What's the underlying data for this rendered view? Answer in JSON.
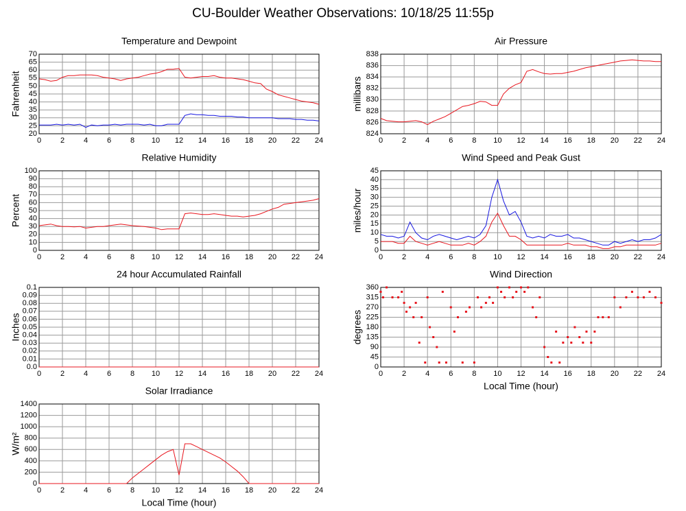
{
  "title": "CU-Boulder Weather Observations: 10/18/25 11:55p",
  "chart_data": [
    {
      "type": "line",
      "title": "Temperature and Dewpoint",
      "ylabel": "Fahrenheit",
      "x": [
        0,
        0.5,
        1,
        1.5,
        2,
        2.5,
        3,
        3.5,
        4,
        4.5,
        5,
        5.5,
        6,
        6.5,
        7,
        7.5,
        8,
        8.5,
        9,
        9.5,
        10,
        10.5,
        11,
        11.5,
        12,
        12.5,
        13,
        13.5,
        14,
        14.5,
        15,
        15.5,
        16,
        16.5,
        17,
        17.5,
        18,
        18.5,
        19,
        19.5,
        20,
        20.5,
        21,
        21.5,
        22,
        22.5,
        23,
        23.5,
        24
      ],
      "series": [
        {
          "color": "#e8141c",
          "values": [
            54.5,
            54,
            53,
            53.5,
            55.5,
            56.5,
            56.5,
            57,
            57,
            57,
            56.5,
            55.5,
            55,
            54.5,
            53.5,
            54.5,
            55,
            55.5,
            56.5,
            57.5,
            58,
            59,
            60.5,
            60.5,
            61,
            55.5,
            55,
            55.5,
            56,
            56,
            56.5,
            55.5,
            55,
            55,
            54.5,
            54,
            53,
            52,
            51.5,
            48,
            46.5,
            44.5,
            43.5,
            42.5,
            41.5,
            40.5,
            40,
            39.5,
            38.5
          ]
        },
        {
          "color": "#1414e0",
          "values": [
            25.5,
            25.5,
            25.5,
            26,
            25.5,
            26,
            25.5,
            26,
            24,
            25.5,
            25,
            25.5,
            25.5,
            26,
            25.5,
            26,
            26,
            26,
            25.5,
            26,
            25,
            25,
            26,
            26,
            26,
            31.5,
            32.5,
            32,
            32,
            31.5,
            31.5,
            31,
            31,
            31,
            30.5,
            30.5,
            30,
            30,
            30,
            30,
            30,
            29.5,
            29.5,
            29.5,
            29,
            29,
            28.5,
            28.5,
            28
          ]
        }
      ],
      "xlim": [
        0,
        24
      ],
      "xticks": [
        0,
        2,
        4,
        6,
        8,
        10,
        12,
        14,
        16,
        18,
        20,
        22,
        24
      ],
      "ylim": [
        20,
        70
      ],
      "yticks": [
        20,
        25,
        30,
        35,
        40,
        45,
        50,
        55,
        60,
        65,
        70
      ],
      "grid": true
    },
    {
      "type": "line",
      "title": "Air Pressure",
      "ylabel": "millibars",
      "x": [
        0,
        0.5,
        1,
        1.5,
        2,
        2.5,
        3,
        3.5,
        4,
        4.5,
        5,
        5.5,
        6,
        6.5,
        7,
        7.5,
        8,
        8.5,
        9,
        9.5,
        10,
        10.5,
        11,
        11.5,
        12,
        12.5,
        13,
        13.5,
        14,
        14.5,
        15,
        15.5,
        16,
        16.5,
        17,
        17.5,
        18,
        18.5,
        19,
        19.5,
        20,
        20.5,
        21,
        21.5,
        22,
        22.5,
        23,
        23.5,
        24
      ],
      "series": [
        {
          "color": "#e8141c",
          "values": [
            826.7,
            826.3,
            826.2,
            826.1,
            826.1,
            826.2,
            826.3,
            826.1,
            825.6,
            826.2,
            826.6,
            827,
            827.6,
            828.2,
            828.8,
            829,
            829.3,
            829.7,
            829.6,
            829,
            829,
            831,
            832,
            832.6,
            833,
            835,
            835.3,
            834.9,
            834.6,
            834.5,
            834.6,
            834.6,
            834.8,
            835,
            835.3,
            835.6,
            835.8,
            836,
            836.2,
            836.4,
            836.6,
            836.8,
            836.9,
            837,
            836.9,
            836.8,
            836.8,
            836.7,
            836.7
          ]
        }
      ],
      "xlim": [
        0,
        24
      ],
      "xticks": [
        0,
        2,
        4,
        6,
        8,
        10,
        12,
        14,
        16,
        18,
        20,
        22,
        24
      ],
      "ylim": [
        824,
        838
      ],
      "yticks": [
        824,
        826,
        828,
        830,
        832,
        834,
        836,
        838
      ],
      "grid": true
    },
    {
      "type": "line",
      "title": "Relative Humidity",
      "ylabel": "Percent",
      "x": [
        0,
        0.5,
        1,
        1.5,
        2,
        2.5,
        3,
        3.5,
        4,
        4.5,
        5,
        5.5,
        6,
        6.5,
        7,
        7.5,
        8,
        8.5,
        9,
        9.5,
        10,
        10.5,
        11,
        11.5,
        12,
        12.5,
        13,
        13.5,
        14,
        14.5,
        15,
        15.5,
        16,
        16.5,
        17,
        17.5,
        18,
        18.5,
        19,
        19.5,
        20,
        20.5,
        21,
        21.5,
        22,
        22.5,
        23,
        23.5,
        24
      ],
      "series": [
        {
          "color": "#e8141c",
          "values": [
            31,
            32,
            33,
            31,
            30,
            30,
            29.5,
            30,
            28,
            29,
            30,
            30,
            31,
            32,
            33,
            32,
            31,
            30.5,
            30,
            29,
            28,
            26,
            27,
            27,
            27,
            46,
            47,
            46,
            45,
            45,
            46,
            45,
            44,
            43,
            43,
            42,
            43,
            44,
            46,
            49,
            52,
            54,
            58,
            59,
            60,
            61,
            62,
            63,
            65
          ]
        }
      ],
      "xlim": [
        0,
        24
      ],
      "xticks": [
        0,
        2,
        4,
        6,
        8,
        10,
        12,
        14,
        16,
        18,
        20,
        22,
        24
      ],
      "ylim": [
        0,
        100
      ],
      "yticks": [
        0,
        10,
        20,
        30,
        40,
        50,
        60,
        70,
        80,
        90,
        100
      ],
      "grid": true
    },
    {
      "type": "line",
      "title": "Wind Speed and Peak Gust",
      "ylabel": "miles/hour",
      "x": [
        0,
        0.5,
        1,
        1.5,
        2,
        2.5,
        3,
        3.5,
        4,
        4.5,
        5,
        5.5,
        6,
        6.5,
        7,
        7.5,
        8,
        8.5,
        9,
        9.5,
        10,
        10.5,
        11,
        11.5,
        12,
        12.5,
        13,
        13.5,
        14,
        14.5,
        15,
        15.5,
        16,
        16.5,
        17,
        17.5,
        18,
        18.5,
        19,
        19.5,
        20,
        20.5,
        21,
        21.5,
        22,
        22.5,
        23,
        23.5,
        24
      ],
      "series": [
        {
          "color": "#1414e0",
          "values": [
            9,
            8,
            8,
            7,
            8,
            16,
            10,
            7,
            6,
            8,
            9,
            8,
            7,
            6,
            7,
            8,
            7,
            9,
            14,
            30,
            40,
            28,
            20,
            22,
            16,
            8,
            7,
            8,
            7,
            9,
            8,
            8,
            9,
            7,
            7,
            6,
            5,
            4,
            3,
            3,
            5,
            4,
            5,
            6,
            5,
            6,
            6,
            7,
            9
          ]
        },
        {
          "color": "#e8141c",
          "values": [
            5,
            5,
            5,
            4,
            4,
            8,
            5,
            4,
            3,
            4,
            5,
            4,
            3,
            3,
            3,
            4,
            3,
            5,
            8,
            16,
            21,
            14,
            8,
            8,
            6,
            3,
            3,
            3,
            3,
            3,
            3,
            3,
            4,
            3,
            3,
            3,
            2,
            2,
            1,
            1,
            2,
            2,
            3,
            3,
            3,
            3,
            3,
            3,
            4
          ]
        }
      ],
      "xlim": [
        0,
        24
      ],
      "xticks": [
        0,
        2,
        4,
        6,
        8,
        10,
        12,
        14,
        16,
        18,
        20,
        22,
        24
      ],
      "ylim": [
        0,
        45
      ],
      "yticks": [
        0,
        5,
        10,
        15,
        20,
        25,
        30,
        35,
        40,
        45
      ],
      "grid": true
    },
    {
      "type": "line",
      "title": "24 hour Accumulated Rainfall",
      "ylabel": "Inches",
      "x": [
        0,
        24
      ],
      "series": [
        {
          "color": "#e8141c",
          "values": [
            0,
            0
          ]
        }
      ],
      "xlim": [
        0,
        24
      ],
      "xticks": [
        0,
        2,
        4,
        6,
        8,
        10,
        12,
        14,
        16,
        18,
        20,
        22,
        24
      ],
      "ylim": [
        0,
        0.1
      ],
      "yticks": [
        {
          "value": 0,
          "label": "0.0"
        },
        0.01,
        0.02,
        0.03,
        0.04,
        0.05,
        0.06,
        0.07,
        0.08,
        0.09,
        0.1
      ],
      "grid": true
    },
    {
      "type": "scatter",
      "title": "Wind Direction",
      "ylabel": "degrees",
      "xlabel": "Local Time (hour)",
      "x": [
        0,
        0.2,
        0.5,
        1,
        1.5,
        1.8,
        2,
        2.2,
        2.5,
        2.8,
        3,
        3.3,
        3.5,
        3.8,
        4,
        4.2,
        4.5,
        4.8,
        5,
        5.3,
        5.6,
        6,
        6.3,
        6.6,
        7,
        7.3,
        7.6,
        8,
        8.3,
        8.6,
        9,
        9.3,
        9.6,
        10,
        10.3,
        10.6,
        11,
        11.3,
        11.6,
        12,
        12.3,
        12.6,
        13,
        13.3,
        13.6,
        14,
        14.3,
        14.6,
        15,
        15.3,
        15.6,
        16,
        16.3,
        16.6,
        17,
        17.3,
        17.6,
        18,
        18.3,
        18.6,
        19,
        19.5,
        20,
        20.5,
        21,
        21.5,
        22,
        22.5,
        23,
        23.5,
        24
      ],
      "color": "#e8141c",
      "values": [
        340,
        315,
        360,
        315,
        315,
        340,
        290,
        250,
        270,
        225,
        290,
        110,
        225,
        20,
        315,
        180,
        135,
        90,
        20,
        340,
        20,
        270,
        160,
        225,
        20,
        250,
        270,
        20,
        315,
        270,
        290,
        315,
        290,
        360,
        340,
        315,
        360,
        315,
        340,
        360,
        340,
        360,
        270,
        225,
        315,
        90,
        45,
        20,
        160,
        20,
        110,
        135,
        110,
        180,
        135,
        110,
        160,
        110,
        160,
        225,
        225,
        225,
        315,
        270,
        315,
        340,
        315,
        315,
        340,
        315,
        290
      ],
      "xlim": [
        0,
        24
      ],
      "xticks": [
        0,
        2,
        4,
        6,
        8,
        10,
        12,
        14,
        16,
        18,
        20,
        22,
        24
      ],
      "ylim": [
        0,
        360
      ],
      "yticks": [
        0,
        45,
        90,
        135,
        180,
        225,
        270,
        315,
        360
      ],
      "grid": true
    },
    {
      "type": "line",
      "title": "Solar Irradiance",
      "ylabel": "W/m²",
      "xlabel": "Local Time (hour)",
      "x": [
        0,
        0.5,
        1,
        1.5,
        2,
        2.5,
        3,
        3.5,
        4,
        4.5,
        5,
        5.5,
        6,
        6.5,
        7,
        7.5,
        8,
        8.5,
        9,
        9.5,
        10,
        10.5,
        11,
        11.5,
        12,
        12.5,
        13,
        13.5,
        14,
        14.5,
        15,
        15.5,
        16,
        16.5,
        17,
        17.5,
        18,
        18.5,
        19,
        19.5,
        20,
        20.5,
        21,
        21.5,
        22,
        22.5,
        23,
        23.5,
        24
      ],
      "series": [
        {
          "color": "#e8141c",
          "values": [
            0,
            0,
            0,
            0,
            0,
            0,
            0,
            0,
            0,
            0,
            0,
            0,
            0,
            0,
            0,
            0,
            100,
            180,
            260,
            340,
            420,
            500,
            560,
            600,
            150,
            700,
            700,
            650,
            600,
            550,
            500,
            450,
            380,
            300,
            220,
            120,
            0,
            0,
            0,
            0,
            0,
            0,
            0,
            0,
            0,
            0,
            0,
            0,
            0
          ]
        }
      ],
      "xlim": [
        0,
        24
      ],
      "xticks": [
        0,
        2,
        4,
        6,
        8,
        10,
        12,
        14,
        16,
        18,
        20,
        22,
        24
      ],
      "ylim": [
        0,
        1400
      ],
      "yticks": [
        0,
        200,
        400,
        600,
        800,
        1000,
        1200,
        1400
      ],
      "grid": true
    }
  ]
}
